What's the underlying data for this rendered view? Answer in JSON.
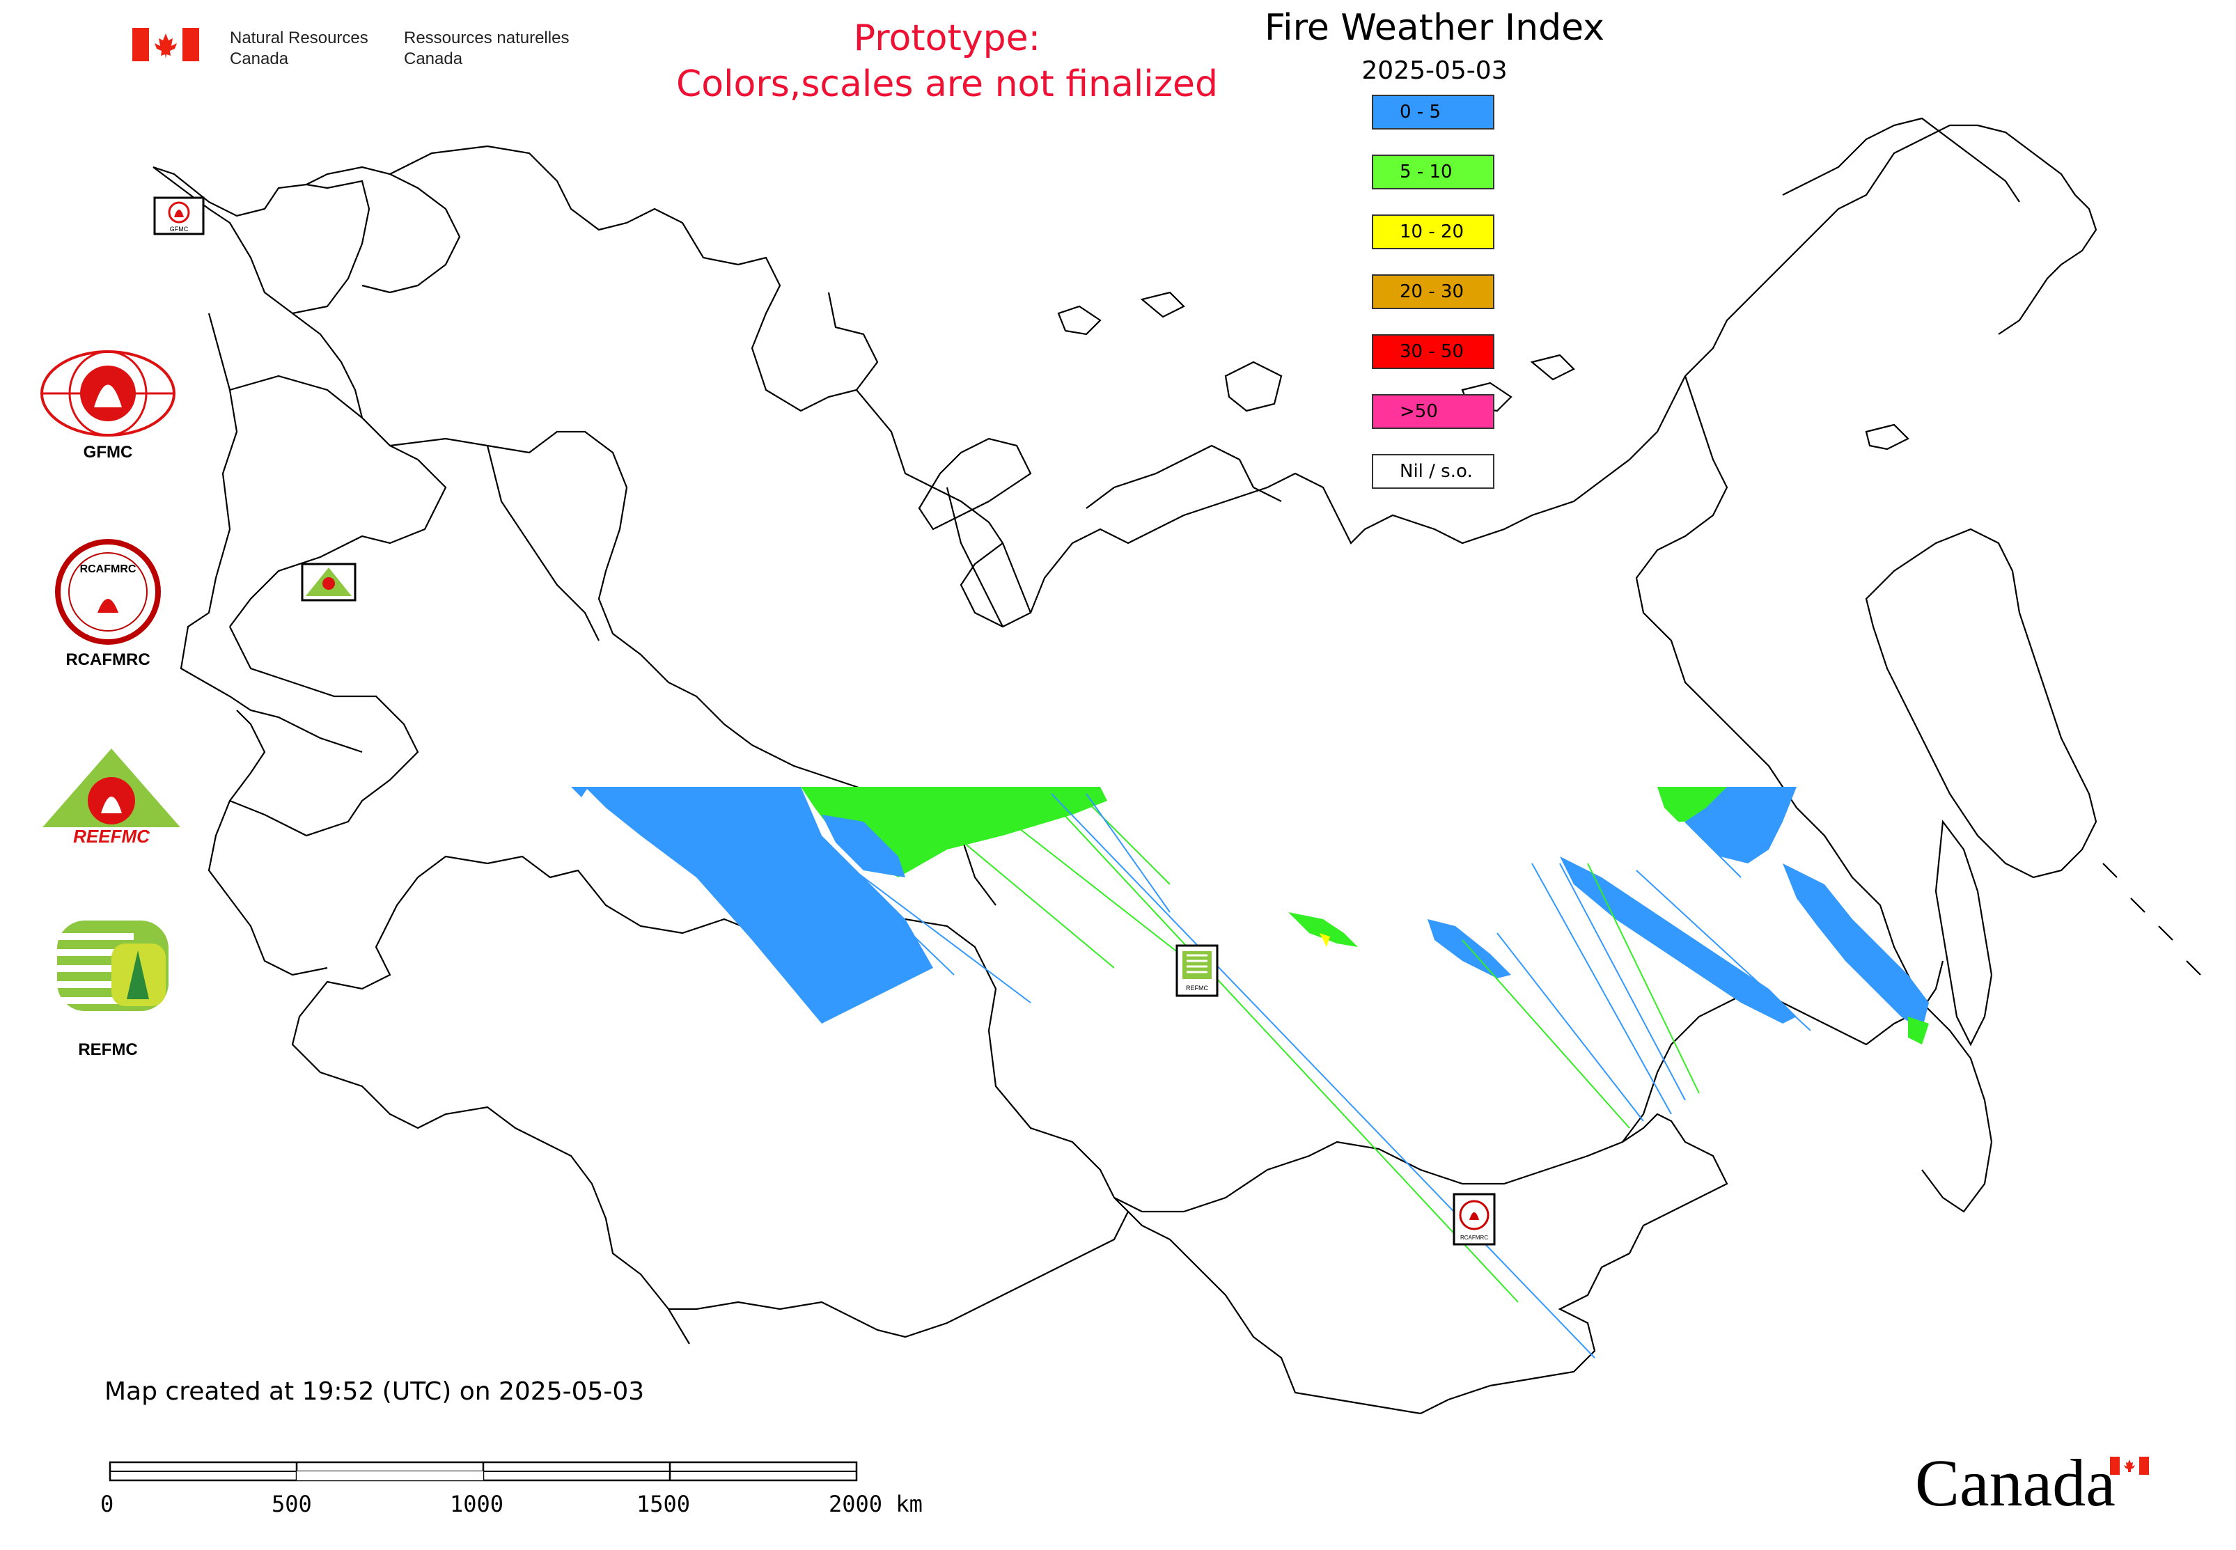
{
  "header": {
    "agency_en": "Natural Resources\nCanada",
    "agency_fr": "Ressources naturelles\nCanada",
    "prototype_line1": "Prototype:",
    "prototype_line2": "Colors,scales are not finalized",
    "title": "Fire Weather Index",
    "date": "2025-05-03"
  },
  "legend": [
    {
      "label": "0 - 5",
      "color": "#3399ff"
    },
    {
      "label": "5 - 10",
      "color": "#66ff33"
    },
    {
      "label": "10 - 20",
      "color": "#ffff00"
    },
    {
      "label": "20 - 30",
      "color": "#e0a000"
    },
    {
      "label": "30 - 50",
      "color": "#ff0000"
    },
    {
      "label": ">50",
      "color": "#ff3399"
    },
    {
      "label": "Nil / s.o.",
      "color": "#ffffff"
    }
  ],
  "logos": {
    "gfmc": "GFMC",
    "rcafmrc": "RCAFMRC",
    "reefmc_text": "REEFMC",
    "refmc": "REFMC"
  },
  "map_markers": {
    "gfmc": "GFMC",
    "reefmc": "REEFMC",
    "refmc": "REFMC",
    "rcafmrc": "RCAFMRC"
  },
  "footer": {
    "created": "Map created at 19:52 (UTC) on 2025-05-03",
    "scale_labels": [
      "0",
      "500",
      "1000",
      "1500",
      "2000 km"
    ],
    "wordmark": "Canada"
  }
}
